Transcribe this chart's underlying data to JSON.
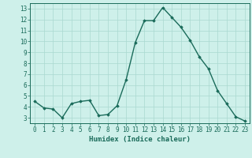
{
  "x": [
    0,
    1,
    2,
    3,
    4,
    5,
    6,
    7,
    8,
    9,
    10,
    11,
    12,
    13,
    14,
    15,
    16,
    17,
    18,
    19,
    20,
    21,
    22,
    23
  ],
  "y": [
    4.5,
    3.9,
    3.8,
    3.0,
    4.3,
    4.5,
    4.6,
    3.2,
    3.3,
    4.1,
    6.5,
    9.9,
    11.9,
    11.9,
    13.1,
    12.2,
    11.3,
    10.1,
    8.6,
    7.5,
    5.5,
    4.3,
    3.1,
    2.7
  ],
  "line_color": "#1a6b5a",
  "marker": "D",
  "marker_size": 1.8,
  "bg_color": "#cef0ea",
  "grid_color": "#aad8d0",
  "xlabel": "Humidex (Indice chaleur)",
  "xlim": [
    -0.5,
    23.5
  ],
  "ylim": [
    2.5,
    13.5
  ],
  "yticks": [
    3,
    4,
    5,
    6,
    7,
    8,
    9,
    10,
    11,
    12,
    13
  ],
  "xticks": [
    0,
    1,
    2,
    3,
    4,
    5,
    6,
    7,
    8,
    9,
    10,
    11,
    12,
    13,
    14,
    15,
    16,
    17,
    18,
    19,
    20,
    21,
    22,
    23
  ],
  "line_width": 1.0,
  "xlabel_fontsize": 6.5,
  "tick_fontsize": 5.5,
  "tick_color": "#1a6b5a",
  "axis_color": "#1a6b5a"
}
